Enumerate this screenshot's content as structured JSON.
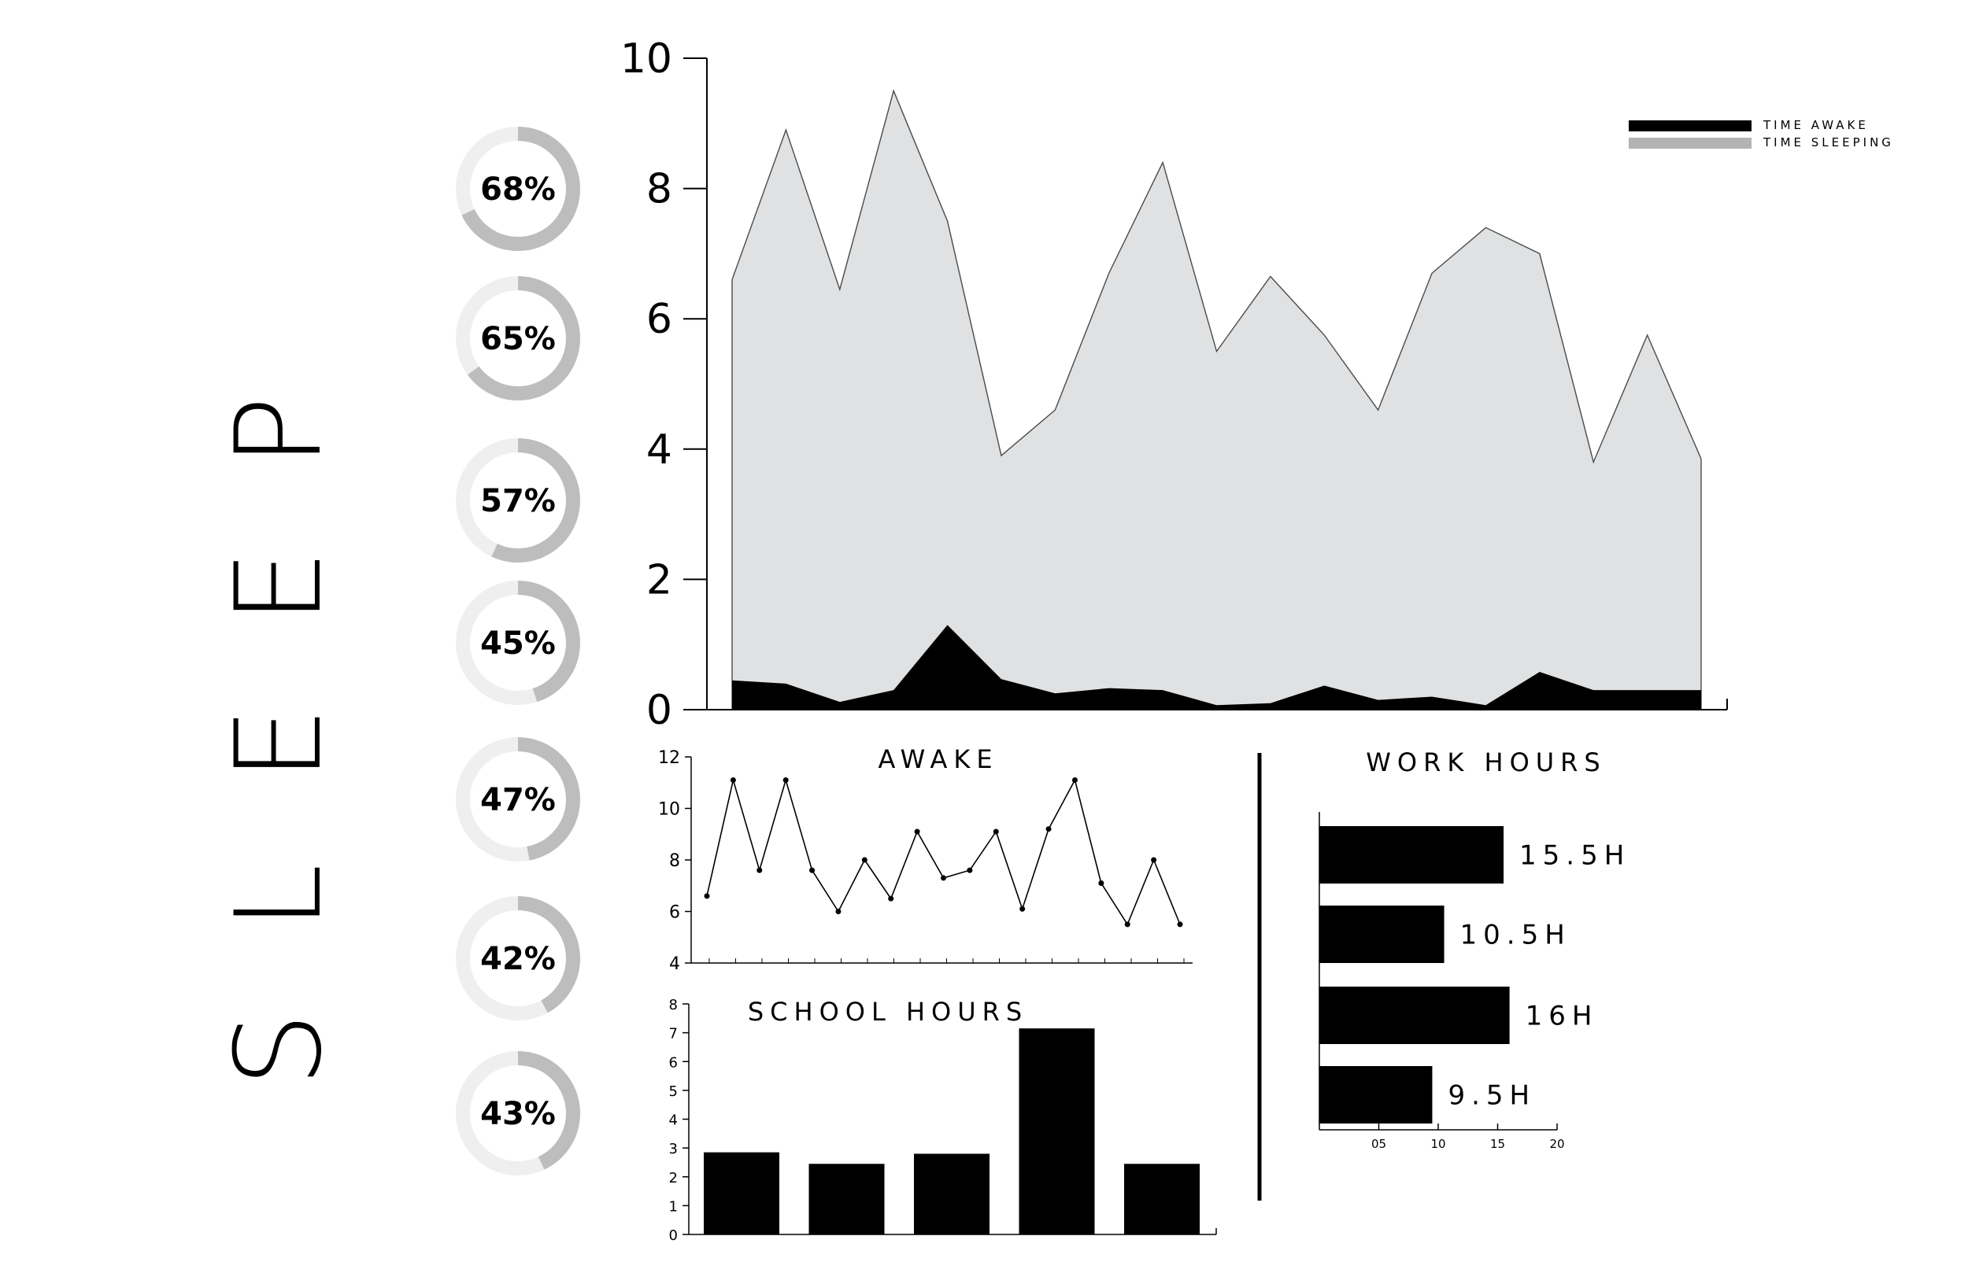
{
  "title": "SLEEP",
  "colors": {
    "awake": "#000000",
    "sleeping_fill": "#e0e1e2",
    "sleeping_legend": "#b3b3b3",
    "donut_track": "#efefef",
    "donut_arc": "#bdbdbd"
  },
  "donuts": [
    {
      "label": "68%",
      "value": 0.68
    },
    {
      "label": "65%",
      "value": 0.65
    },
    {
      "label": "57%",
      "value": 0.57
    },
    {
      "label": "45%",
      "value": 0.45
    },
    {
      "label": "47%",
      "value": 0.47
    },
    {
      "label": "42%",
      "value": 0.42
    },
    {
      "label": "43%",
      "value": 0.43
    }
  ],
  "chart_data": [
    {
      "type": "area",
      "ylim": [
        0,
        10
      ],
      "yticks": [
        "0",
        "2",
        "4",
        "6",
        "8",
        "10"
      ],
      "legend_position": "top-right",
      "series": [
        {
          "name": "TIME AWAKE",
          "color": "#000000",
          "values": [
            0.45,
            0.4,
            0.12,
            0.3,
            1.3,
            0.47,
            0.25,
            0.33,
            0.3,
            0.07,
            0.1,
            0.37,
            0.15,
            0.2,
            0.07,
            0.58,
            0.3,
            0.3,
            0.3
          ]
        },
        {
          "name": "TIME SLEEPING",
          "color": "#b3b3b3",
          "values": [
            6.6,
            8.9,
            6.45,
            9.5,
            7.5,
            3.9,
            4.6,
            6.7,
            8.4,
            5.5,
            6.65,
            5.75,
            4.6,
            6.7,
            7.4,
            7.0,
            3.8,
            5.75,
            3.85
          ]
        }
      ]
    },
    {
      "type": "line",
      "title": "AWAKE",
      "ylim": [
        4,
        12
      ],
      "yticks": [
        "4",
        "6",
        "8",
        "10",
        "12"
      ],
      "values": [
        6.6,
        11.1,
        7.6,
        11.1,
        7.6,
        6.0,
        8.0,
        6.5,
        9.1,
        7.3,
        7.6,
        9.1,
        6.1,
        9.2,
        11.1,
        7.1,
        5.5,
        8.0,
        5.5
      ]
    },
    {
      "type": "bar",
      "title": "SCHOOL HOURS",
      "ylim": [
        0,
        8
      ],
      "yticks": [
        "0",
        "1",
        "2",
        "3",
        "4",
        "5",
        "6",
        "7",
        "8"
      ],
      "values": [
        2.85,
        2.45,
        2.8,
        7.15,
        2.45
      ]
    },
    {
      "type": "bar",
      "orientation": "horizontal",
      "title": "WORK HOURS",
      "xlim": [
        0,
        20
      ],
      "xticks": [
        "05",
        "10",
        "15",
        "20"
      ],
      "values": [
        15.5,
        10.5,
        16,
        9.5
      ],
      "data_labels": [
        "15.5H",
        "10.5H",
        "16H",
        "9.5H"
      ]
    }
  ]
}
